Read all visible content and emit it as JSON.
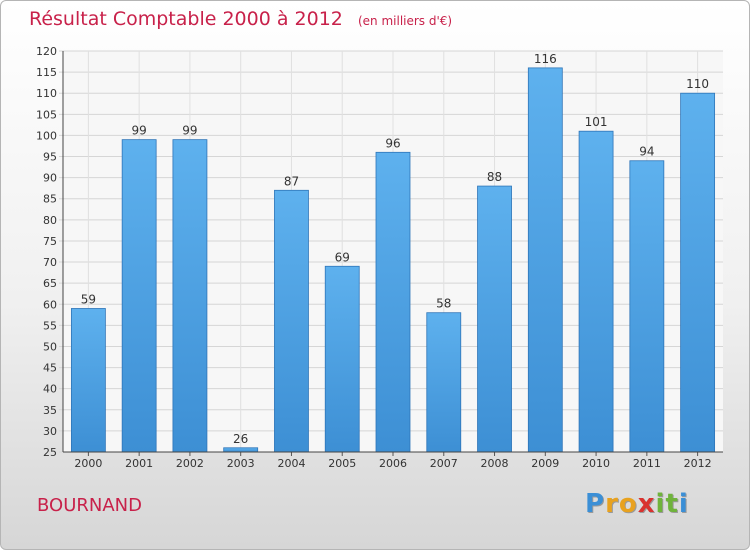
{
  "chart_data": {
    "type": "bar",
    "title": "Résultat Comptable 2000 à 2012",
    "subtitle": "(en milliers d'€)",
    "categories": [
      "2000",
      "2001",
      "2002",
      "2003",
      "2004",
      "2005",
      "2006",
      "2007",
      "2008",
      "2009",
      "2010",
      "2011",
      "2012"
    ],
    "values": [
      59,
      99,
      99,
      26,
      87,
      69,
      96,
      58,
      88,
      116,
      101,
      94,
      110
    ],
    "ylim": [
      25,
      120
    ],
    "yticks": [
      25,
      30,
      35,
      40,
      45,
      50,
      55,
      60,
      65,
      70,
      75,
      80,
      85,
      90,
      95,
      100,
      105,
      110,
      115,
      120
    ],
    "grid": true,
    "bar_color": "#3d8fd4",
    "title_color": "#c8214a"
  },
  "commune": "BOURNAND",
  "logo": {
    "letters": [
      "P",
      "r",
      "o",
      "x",
      "i",
      "t",
      "i"
    ],
    "colors": [
      "#3b8fd6",
      "#e8a21f",
      "#e8a21f",
      "#d9322f",
      "#6fb33b",
      "#6fb33b",
      "#3b8fd6"
    ]
  }
}
